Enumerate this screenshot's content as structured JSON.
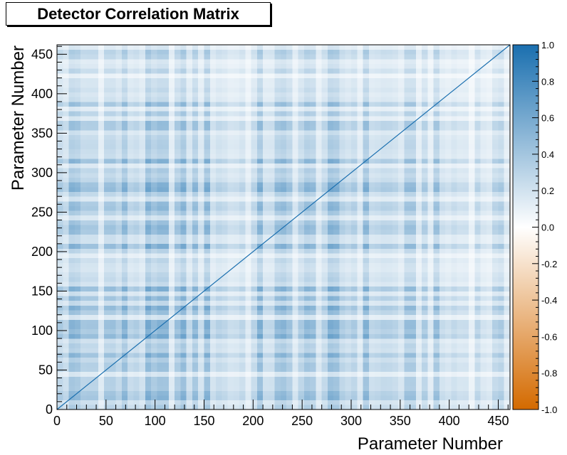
{
  "chart_data": {
    "type": "heatmap",
    "title": "Detector Correlation Matrix",
    "xlabel": "Parameter Number",
    "ylabel": "Parameter Number",
    "n_params": 462,
    "xlim": [
      0,
      462
    ],
    "ylim": [
      0,
      462
    ],
    "x_ticks": [
      0,
      50,
      100,
      150,
      200,
      250,
      300,
      350,
      400,
      450
    ],
    "y_ticks": [
      0,
      50,
      100,
      150,
      200,
      250,
      300,
      350,
      400,
      450
    ],
    "z_range": [
      -1.0,
      1.0
    ],
    "colorbar_ticks": [
      "1.0",
      "0.8",
      "0.6",
      "0.4",
      "0.2",
      "0.0",
      "-0.2",
      "-0.4",
      "-0.6",
      "-0.8",
      "-1.0"
    ],
    "colorbar_values": [
      1.0,
      0.8,
      0.6,
      0.4,
      0.2,
      0.0,
      -0.2,
      -0.4,
      -0.6,
      -0.8,
      -1.0
    ],
    "colors": {
      "positive": "#1a6faf",
      "zero": "#ffffff",
      "negative": "#d46a00"
    },
    "diagonal_value": 1.0,
    "blocks": [
      {
        "range": [
          0,
          165
        ],
        "level": 0.45
      },
      {
        "range": [
          165,
          200
        ],
        "level": 0.22
      },
      {
        "range": [
          200,
          330
        ],
        "level": 0.42
      },
      {
        "range": [
          330,
          390
        ],
        "level": 0.28
      },
      {
        "range": [
          390,
          462
        ],
        "level": 0.18
      }
    ]
  }
}
